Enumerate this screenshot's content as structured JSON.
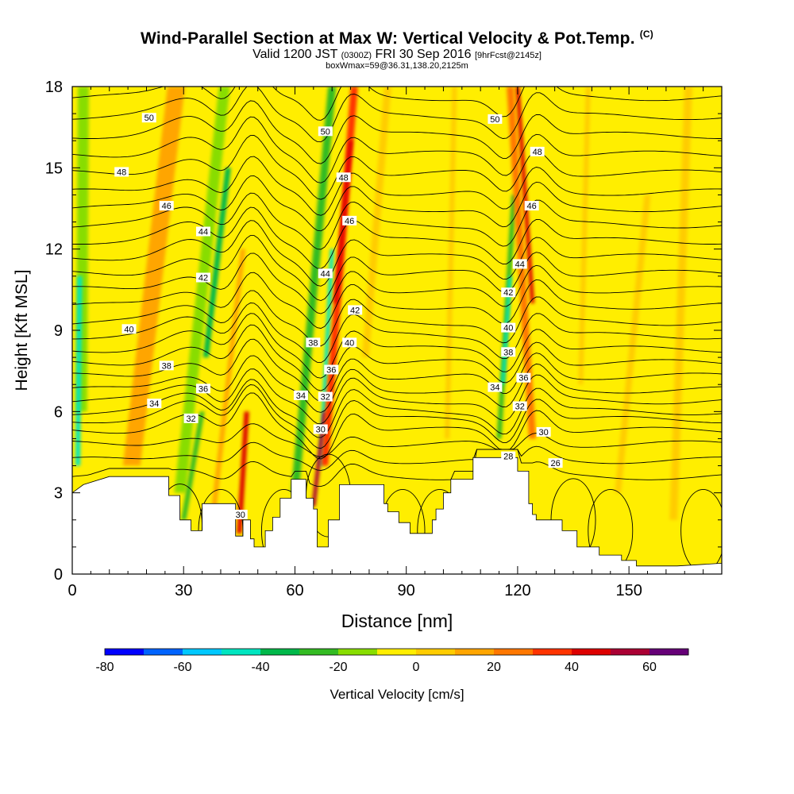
{
  "title": "Wind-Parallel Section at Max W: Vertical Velocity & Pot.Temp.",
  "title_mark": "(C)",
  "subtitle_main": "Valid 1200 JST",
  "subtitle_utc": "(0300Z)",
  "subtitle_date": "FRI 30 Sep 2016",
  "subtitle_fcst": "[9hrFcst@2145z]",
  "subtitle2": "boxWmax=59@36.31,138.20,2125m",
  "colorbar_label": "Vertical Velocity [cm/s]",
  "colors": {
    "background_field": "#ffee00",
    "terrain": "#ffffff"
  },
  "chart_data": {
    "type": "contour",
    "xlabel": "Distance [nm]",
    "ylabel": "Height [Kft MSL]",
    "xlim": [
      0,
      175
    ],
    "ylim": [
      0,
      18
    ],
    "x_ticks": [
      0,
      30,
      60,
      90,
      120,
      150
    ],
    "x_tick_labels": [
      "0",
      "30",
      "60",
      "90",
      "120",
      "150"
    ],
    "y_ticks": [
      0,
      3,
      6,
      9,
      12,
      15,
      18
    ],
    "y_tick_labels": [
      "0",
      "3",
      "6",
      "9",
      "12",
      "15",
      "18"
    ],
    "colorbar": {
      "range": [
        -80,
        70
      ],
      "step": 10,
      "tick_values": [
        -80,
        -60,
        -40,
        -20,
        0,
        20,
        40,
        60
      ],
      "tick_labels": [
        "-80",
        "-60",
        "-40",
        "-20",
        "0",
        "20",
        "40",
        "60"
      ],
      "colors": [
        "#0000ff",
        "#0063ff",
        "#00c8ff",
        "#00e5c0",
        "#00b84a",
        "#33bb22",
        "#88dd00",
        "#ffee00",
        "#ffcc00",
        "#ffa500",
        "#ff7700",
        "#ff3300",
        "#dd0000",
        "#aa0033",
        "#660077"
      ]
    },
    "terrain_profile": [
      [
        0,
        3.0
      ],
      [
        3,
        3.3
      ],
      [
        10,
        3.6
      ],
      [
        26,
        3.6
      ],
      [
        26,
        2.9
      ],
      [
        29,
        2.9
      ],
      [
        29,
        2.0
      ],
      [
        32,
        2.0
      ],
      [
        32,
        1.6
      ],
      [
        35,
        1.6
      ],
      [
        35,
        2.6
      ],
      [
        44,
        2.6
      ],
      [
        44,
        1.4
      ],
      [
        46,
        1.4
      ],
      [
        46,
        2.0
      ],
      [
        48,
        2.0
      ],
      [
        48,
        1.3
      ],
      [
        49,
        1.3
      ],
      [
        49,
        1.0
      ],
      [
        52,
        1.0
      ],
      [
        52,
        1.6
      ],
      [
        54,
        1.6
      ],
      [
        54,
        2.1
      ],
      [
        56,
        2.1
      ],
      [
        56,
        2.8
      ],
      [
        59,
        2.8
      ],
      [
        59,
        3.5
      ],
      [
        63,
        3.5
      ],
      [
        63,
        2.8
      ],
      [
        65,
        2.8
      ],
      [
        65,
        2.4
      ],
      [
        66,
        2.4
      ],
      [
        66,
        1.0
      ],
      [
        69,
        1.0
      ],
      [
        69,
        2.0
      ],
      [
        72,
        2.0
      ],
      [
        72,
        3.3
      ],
      [
        84,
        3.3
      ],
      [
        84,
        2.6
      ],
      [
        85,
        2.6
      ],
      [
        85,
        2.3
      ],
      [
        88,
        2.3
      ],
      [
        88,
        1.9
      ],
      [
        91,
        1.9
      ],
      [
        91,
        1.5
      ],
      [
        97,
        1.5
      ],
      [
        97,
        2.0
      ],
      [
        98,
        2.0
      ],
      [
        98,
        2.4
      ],
      [
        100,
        2.4
      ],
      [
        100,
        3.0
      ],
      [
        102,
        3.0
      ],
      [
        102,
        3.5
      ],
      [
        108,
        3.5
      ],
      [
        108,
        4.3
      ],
      [
        120,
        4.3
      ],
      [
        120,
        3.8
      ],
      [
        123,
        3.8
      ],
      [
        123,
        2.6
      ],
      [
        124,
        2.6
      ],
      [
        124,
        2.2
      ],
      [
        125,
        2.2
      ],
      [
        125,
        2.0
      ],
      [
        132,
        2.0
      ],
      [
        132,
        1.6
      ],
      [
        136,
        1.6
      ],
      [
        136,
        1.0
      ],
      [
        142,
        1.0
      ],
      [
        142,
        0.7
      ],
      [
        148,
        0.7
      ],
      [
        148,
        0.5
      ],
      [
        152,
        0.5
      ],
      [
        152,
        0.3
      ],
      [
        163,
        0.3
      ],
      [
        175,
        0.4
      ]
    ],
    "w_features": [
      {
        "x0": 2.5,
        "x1": 3,
        "y0": 6,
        "y1": 18,
        "w": 14,
        "w_val": -20
      },
      {
        "x0": 1.5,
        "x1": 2,
        "y0": 4,
        "y1": 11,
        "w": 6,
        "w_val": -50
      },
      {
        "x0": 16,
        "x1": 28,
        "y0": 4,
        "y1": 18,
        "w": 22,
        "w_val": 10
      },
      {
        "x0": 29,
        "x1": 41,
        "y0": 3,
        "y1": 18,
        "w": 14,
        "w_val": -20
      },
      {
        "x0": 36,
        "x1": 42,
        "y0": 8,
        "y1": 15,
        "w": 7,
        "w_val": -35
      },
      {
        "x0": 30,
        "x1": 35,
        "y0": 2,
        "y1": 6,
        "w": 6,
        "w_val": -30
      },
      {
        "x0": 38,
        "x1": 46,
        "y0": 2.2,
        "y1": 12,
        "w": 6,
        "w_val": 15
      },
      {
        "x0": 45,
        "x1": 47,
        "y0": 1.5,
        "y1": 6,
        "w": 6,
        "w_val": 45
      },
      {
        "x0": 60,
        "x1": 70,
        "y0": 3,
        "y1": 18,
        "w": 10,
        "w_val": -30
      },
      {
        "x0": 67,
        "x1": 70,
        "y0": 4,
        "y1": 12,
        "w": 5,
        "w_val": -50
      },
      {
        "x0": 65,
        "x1": 68,
        "y0": 2.5,
        "y1": 6,
        "w": 5,
        "w_val": 50
      },
      {
        "x0": 68,
        "x1": 76,
        "y0": 4,
        "y1": 18,
        "w": 9,
        "w_val": 30
      },
      {
        "x0": 71,
        "x1": 75,
        "y0": 10,
        "y1": 16,
        "w": 5,
        "w_val": 45
      },
      {
        "x0": 79,
        "x1": 85,
        "y0": 8,
        "y1": 18,
        "w": 9,
        "w_val": 5
      },
      {
        "x0": 115,
        "x1": 119,
        "y0": 5,
        "y1": 14,
        "w": 6,
        "w_val": -25
      },
      {
        "x0": 116,
        "x1": 118,
        "y0": 7,
        "y1": 11,
        "w": 4,
        "w_val": -45
      },
      {
        "x0": 124,
        "x1": 118,
        "y0": 5,
        "y1": 18,
        "w": 9,
        "w_val": 25
      },
      {
        "x0": 124,
        "x1": 120,
        "y0": 10,
        "y1": 18,
        "w": 5,
        "w_val": 45
      },
      {
        "x0": 101,
        "x1": 103,
        "y0": 5,
        "y1": 18,
        "w": 6,
        "w_val": 8
      },
      {
        "x0": 137,
        "x1": 139,
        "y0": 7,
        "y1": 18,
        "w": 6,
        "w_val": 5
      },
      {
        "x0": 147,
        "x1": 155,
        "y0": 3,
        "y1": 14,
        "w": 8,
        "w_val": 6
      },
      {
        "x0": 162,
        "x1": 166,
        "y0": 2,
        "y1": 18,
        "w": 10,
        "w_val": 8
      }
    ],
    "isentropes": {
      "levels": [
        26,
        27,
        28,
        29,
        30,
        31,
        32,
        33,
        34,
        35,
        36,
        37,
        38,
        39,
        40,
        41,
        42,
        43,
        44,
        45,
        46,
        47,
        48,
        49,
        50,
        51
      ],
      "base_height": [
        3.6,
        4.2,
        4.8,
        5.3,
        5.7,
        6.0,
        6.4,
        6.8,
        7.3,
        7.8,
        8.3,
        8.8,
        9.3,
        9.9,
        10.5,
        11.1,
        11.7,
        12.3,
        12.9,
        13.5,
        14.1,
        14.8,
        15.5,
        16.2,
        16.9,
        17.6
      ]
    },
    "contour_labels": [
      {
        "text": "50",
        "x": 20.7,
        "y": 16.85
      },
      {
        "text": "50",
        "x": 68.2,
        "y": 16.35
      },
      {
        "text": "50",
        "x": 113.9,
        "y": 16.8
      },
      {
        "text": "48",
        "x": 13.3,
        "y": 14.85
      },
      {
        "text": "48",
        "x": 73.1,
        "y": 14.65
      },
      {
        "text": "48",
        "x": 125.3,
        "y": 15.6
      },
      {
        "text": "46",
        "x": 25.4,
        "y": 13.6
      },
      {
        "text": "46",
        "x": 74.7,
        "y": 13.05
      },
      {
        "text": "46",
        "x": 123.8,
        "y": 13.6
      },
      {
        "text": "44",
        "x": 35.3,
        "y": 12.65
      },
      {
        "text": "44",
        "x": 68.2,
        "y": 11.1
      },
      {
        "text": "44",
        "x": 120.6,
        "y": 11.45
      },
      {
        "text": "42",
        "x": 35.3,
        "y": 10.95
      },
      {
        "text": "42",
        "x": 76.2,
        "y": 9.75
      },
      {
        "text": "42",
        "x": 117.5,
        "y": 10.4
      },
      {
        "text": "40",
        "x": 15.3,
        "y": 9.05
      },
      {
        "text": "40",
        "x": 74.7,
        "y": 8.55
      },
      {
        "text": "40",
        "x": 117.5,
        "y": 9.1
      },
      {
        "text": "38",
        "x": 25.4,
        "y": 7.7
      },
      {
        "text": "38",
        "x": 64.9,
        "y": 8.55
      },
      {
        "text": "38",
        "x": 117.5,
        "y": 8.2
      },
      {
        "text": "36",
        "x": 35.3,
        "y": 6.85
      },
      {
        "text": "36",
        "x": 69.8,
        "y": 7.55
      },
      {
        "text": "36",
        "x": 121.6,
        "y": 7.25
      },
      {
        "text": "34",
        "x": 22.1,
        "y": 6.3
      },
      {
        "text": "34",
        "x": 61.6,
        "y": 6.6
      },
      {
        "text": "34",
        "x": 113.9,
        "y": 6.9
      },
      {
        "text": "32",
        "x": 32.0,
        "y": 5.75
      },
      {
        "text": "32",
        "x": 68.2,
        "y": 6.55
      },
      {
        "text": "32",
        "x": 120.6,
        "y": 6.2
      },
      {
        "text": "30",
        "x": 66.9,
        "y": 5.35
      },
      {
        "text": "30",
        "x": 127.0,
        "y": 5.25
      },
      {
        "text": "30",
        "x": 45.3,
        "y": 2.2
      },
      {
        "text": "28",
        "x": 117.5,
        "y": 4.35
      },
      {
        "text": "26",
        "x": 130.2,
        "y": 4.1
      }
    ]
  }
}
